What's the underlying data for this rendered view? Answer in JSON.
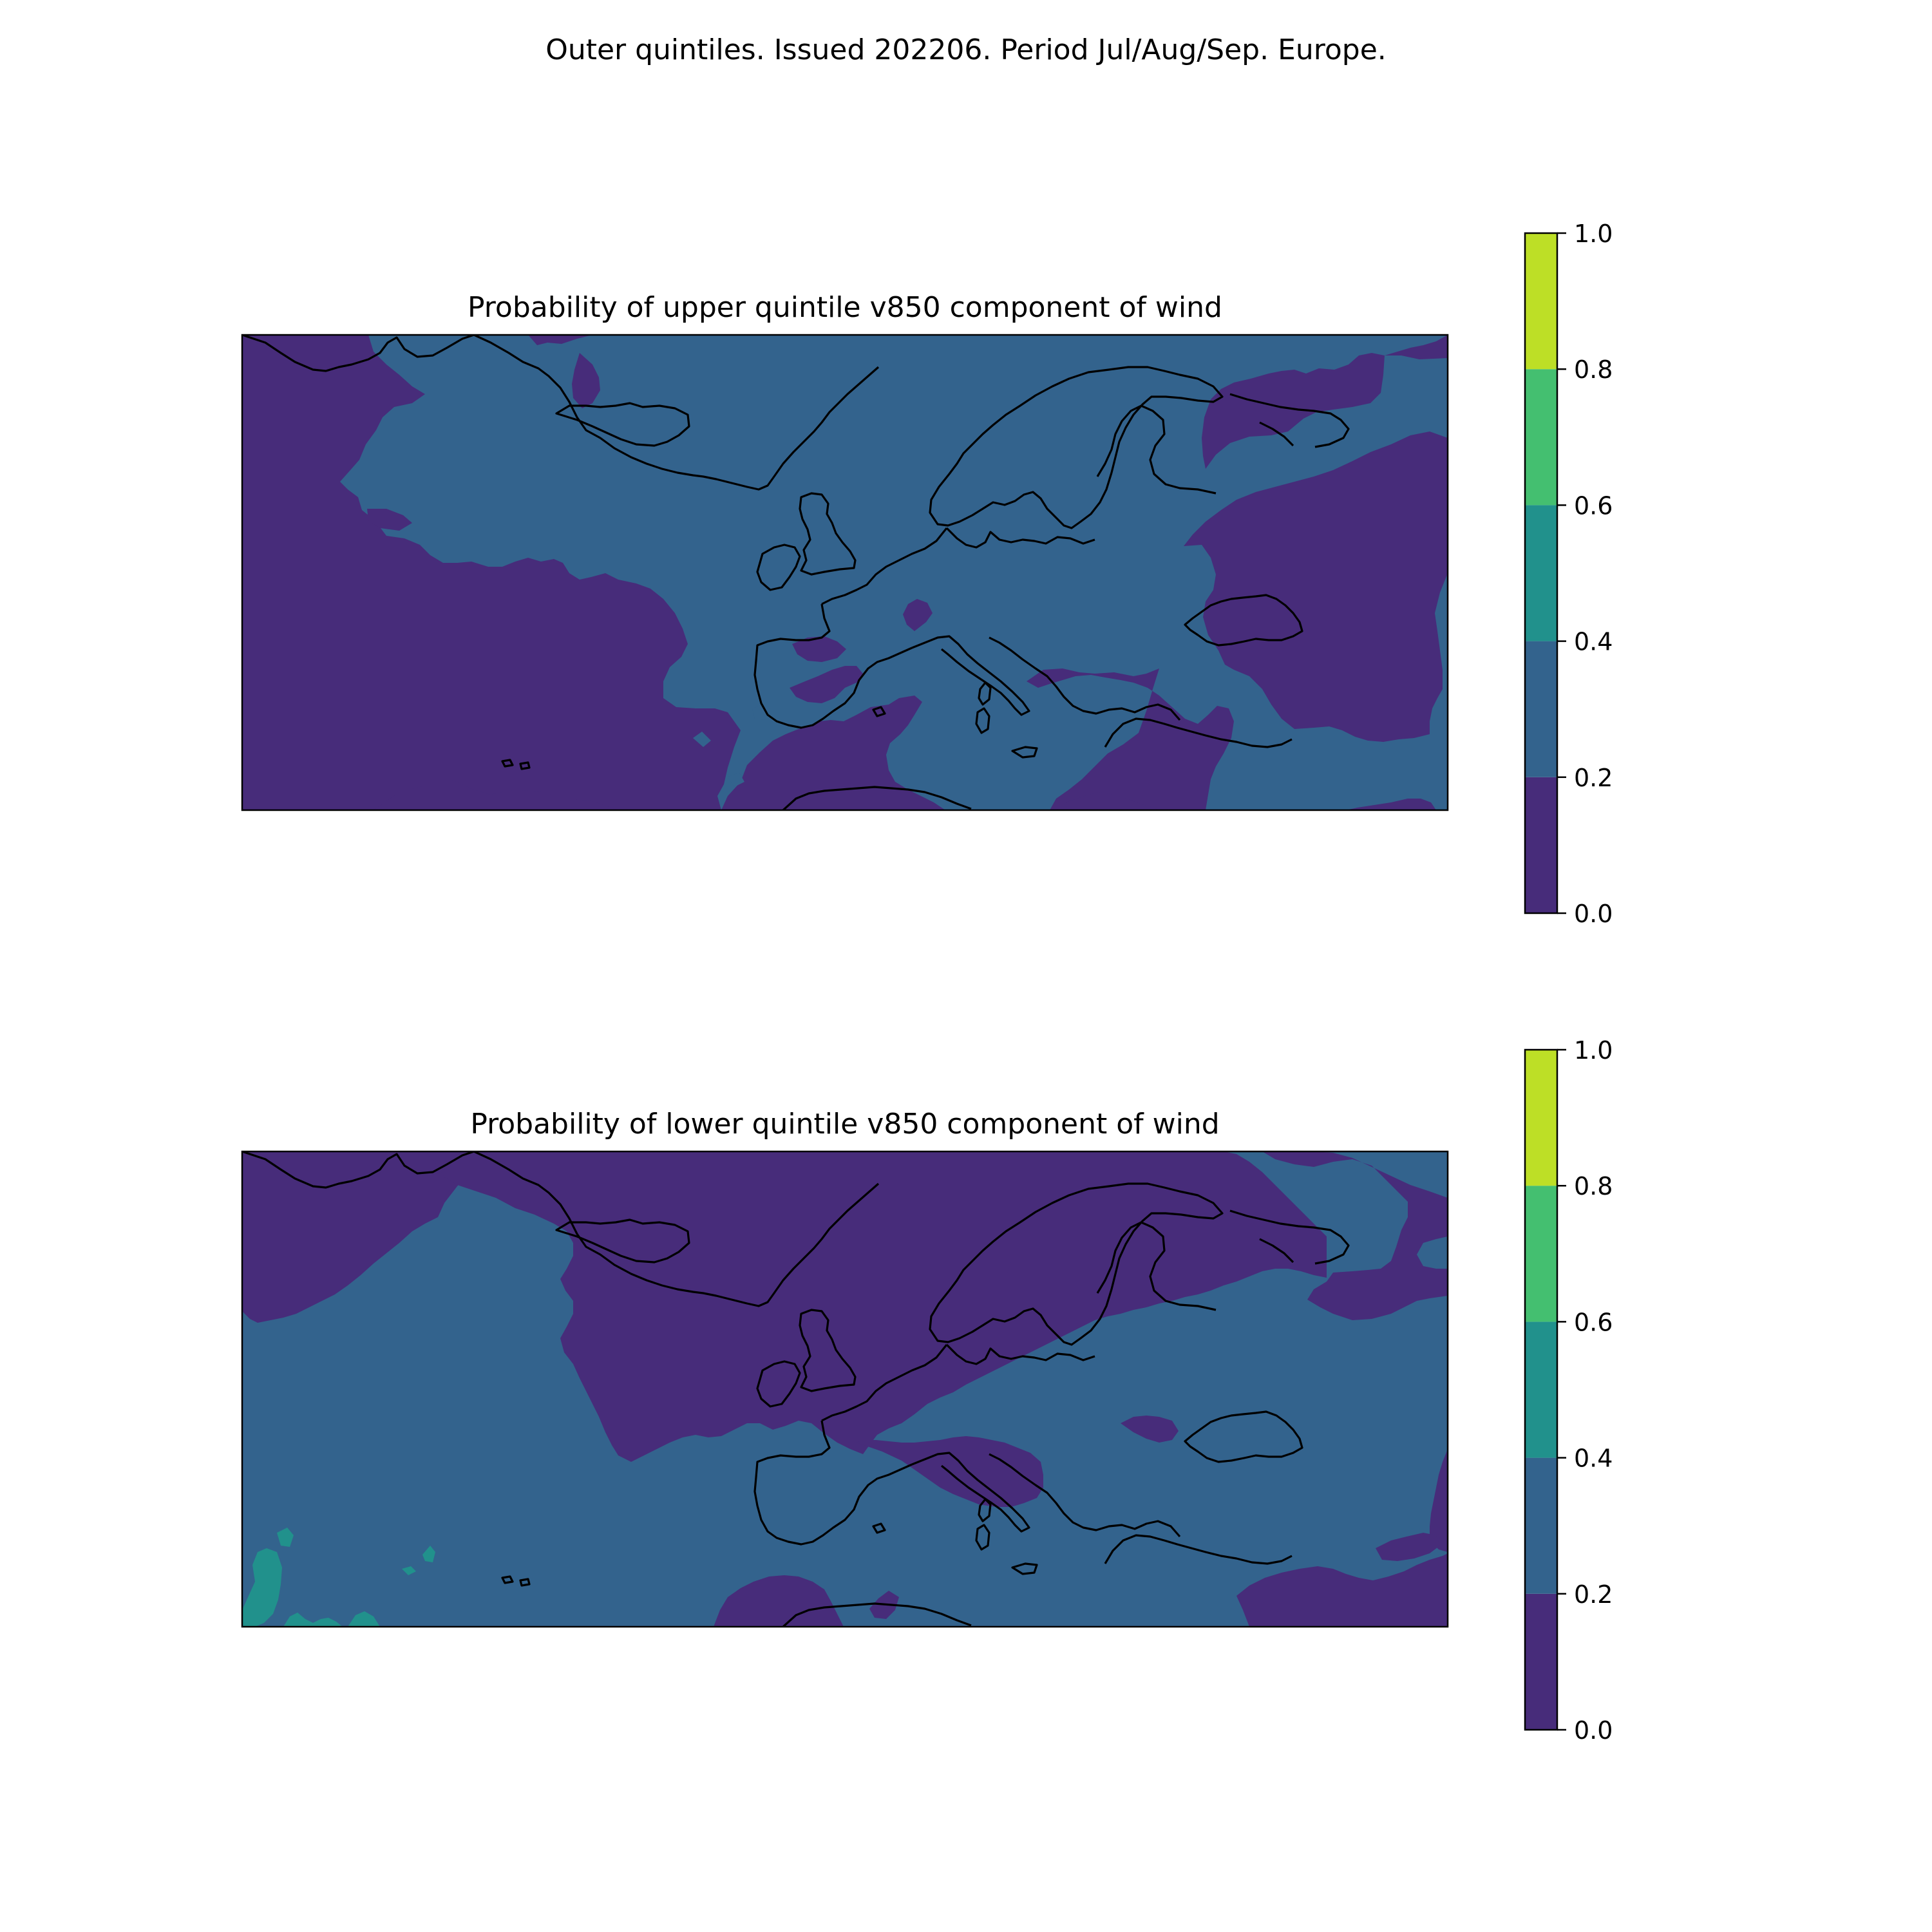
{
  "figure": {
    "suptitle": "Outer quintiles. Issued 202206. Period Jul/Aug/Sep. Europe."
  },
  "colors": {
    "bins": [
      "#472c7a",
      "#33638d",
      "#21918c",
      "#44bf70",
      "#bddf26"
    ],
    "coastline": "#000000",
    "frame": "#000000"
  },
  "panels": [
    {
      "title": "Probability of upper quintile v850 component of wind",
      "background_bin": 1,
      "colorbar": {
        "ticks": [
          "0.0",
          "0.2",
          "0.4",
          "0.6",
          "0.8",
          "1.0"
        ],
        "bin_edges": [
          0.0,
          0.2,
          0.4,
          0.6,
          0.8,
          1.0
        ]
      },
      "note": ""
    },
    {
      "title": "Probability of lower quintile v850 component of wind",
      "background_bin": 1,
      "colorbar": {
        "ticks": [
          "0.0",
          "0.2",
          "0.4",
          "0.6",
          "0.8",
          "1.0"
        ],
        "bin_edges": [
          0.0,
          0.2,
          0.4,
          0.6,
          0.8,
          1.0
        ]
      },
      "note": ""
    }
  ]
}
